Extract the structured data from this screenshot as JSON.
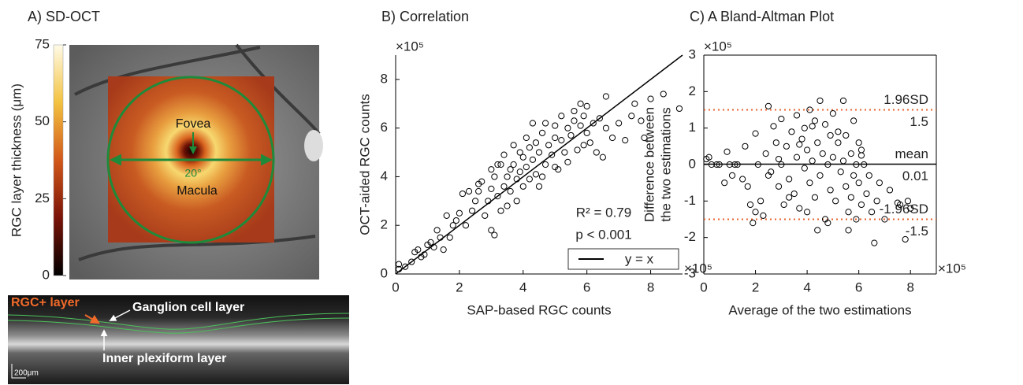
{
  "chart_data": [
    {
      "type": "image",
      "title": "A) SD-OCT",
      "colorbar": {
        "label": "RGC layer thickness (μm)",
        "lim": [
          0,
          75
        ],
        "ticks": [
          0,
          25,
          50,
          75
        ]
      },
      "annotations": [
        "Fovea",
        "20°",
        "Macula",
        "RGC+ layer",
        "Ganglion cell layer",
        "Inner plexiform layer",
        "200μm"
      ]
    },
    {
      "type": "scatter",
      "title": "B) Correlation",
      "xlabel": "SAP-based RGC counts",
      "ylabel": "OCT-aided RGC counts",
      "x_multiplier": "×10⁵",
      "y_multiplier": "×10⁵",
      "xlim": [
        0,
        9
      ],
      "ylim": [
        0,
        9
      ],
      "xticks": [
        0,
        2,
        4,
        6,
        8
      ],
      "yticks": [
        0,
        2,
        4,
        6,
        8
      ],
      "annotations": [
        "R² = 0.79",
        "p < 0.001"
      ],
      "reference_line": {
        "name": "y = x",
        "color": "#000000"
      },
      "x": [
        0.1,
        0.1,
        0.3,
        0.5,
        0.6,
        0.7,
        0.8,
        0.9,
        1.0,
        1.1,
        1.2,
        1.3,
        1.4,
        1.5,
        1.6,
        1.7,
        1.8,
        1.9,
        2.0,
        2.1,
        2.2,
        2.3,
        2.4,
        2.5,
        2.6,
        2.7,
        2.8,
        2.9,
        3.0,
        3.0,
        3.0,
        3.1,
        3.1,
        3.2,
        3.3,
        3.3,
        3.4,
        3.4,
        3.5,
        3.5,
        3.6,
        3.6,
        3.7,
        3.7,
        3.8,
        3.8,
        3.9,
        3.9,
        4.0,
        4.0,
        4.1,
        4.1,
        4.2,
        4.2,
        4.3,
        4.3,
        4.4,
        4.4,
        4.5,
        4.5,
        4.6,
        4.7,
        4.7,
        4.8,
        4.9,
        5.0,
        5.0,
        5.1,
        5.2,
        5.2,
        5.3,
        5.4,
        5.4,
        5.5,
        5.6,
        5.7,
        5.8,
        5.8,
        5.9,
        5.9,
        6.0,
        6.0,
        6.1,
        6.2,
        6.3,
        6.4,
        6.5,
        6.6,
        6.8,
        7.0,
        7.2,
        7.4,
        7.5,
        7.7,
        7.8,
        8.0,
        8.4,
        8.9,
        4.6,
        3.2,
        2.6,
        5.6,
        6.6,
        5.0
      ],
      "series": [
        {
          "color": "#000000",
          "values": [
            0.2,
            0.4,
            0.3,
            0.5,
            0.9,
            1.0,
            0.7,
            0.8,
            1.2,
            1.3,
            1.1,
            1.8,
            1.5,
            1.0,
            2.4,
            1.5,
            2.0,
            2.2,
            2.5,
            3.3,
            2.0,
            3.4,
            2.6,
            3.0,
            3.7,
            3.8,
            2.4,
            3.0,
            1.8,
            3.5,
            4.3,
            1.6,
            4.0,
            3.2,
            4.5,
            2.6,
            3.6,
            4.9,
            4.0,
            2.8,
            4.3,
            3.4,
            5.3,
            4.5,
            3.9,
            3.0,
            5.0,
            4.2,
            4.8,
            3.6,
            5.6,
            4.4,
            3.9,
            5.2,
            4.7,
            6.2,
            4.1,
            5.4,
            5.0,
            3.6,
            5.8,
            4.5,
            6.2,
            5.3,
            4.9,
            5.6,
            6.1,
            4.3,
            5.5,
            6.5,
            5.0,
            6.0,
            4.6,
            5.7,
            6.3,
            5.1,
            6.1,
            7.0,
            5.3,
            6.5,
            5.8,
            6.9,
            5.4,
            6.2,
            5.0,
            6.4,
            4.8,
            6.0,
            5.6,
            6.2,
            5.5,
            6.5,
            7.0,
            6.3,
            5.6,
            7.2,
            7.4,
            6.8,
            4.0,
            4.5,
            3.4,
            6.7,
            7.3,
            4.4
          ]
        }
      ]
    },
    {
      "type": "scatter",
      "title": "C) A Bland-Altman Plot",
      "xlabel": "Average of the two estimations",
      "ylabel": [
        "Difference between",
        "the two estimations"
      ],
      "x_multiplier": "×10⁵",
      "y_multiplier": "×10⁵",
      "box": true,
      "xlim": [
        0,
        9
      ],
      "ylim": [
        -3,
        3
      ],
      "xticks": [
        0,
        2,
        4,
        6,
        8
      ],
      "yticks": [
        -3,
        -2,
        -1,
        0,
        1,
        2,
        3
      ],
      "hlines": [
        {
          "name": "1.96SD",
          "value": 1.5,
          "color": "#e8602c",
          "style": "dotted"
        },
        {
          "name": "mean",
          "value": 0.01,
          "color": "#000000",
          "style": "solid"
        },
        {
          "name": "-1.96SD",
          "value": -1.5,
          "color": "#e8602c",
          "style": "dotted"
        }
      ],
      "x": [
        0.1,
        0.2,
        0.3,
        0.5,
        0.8,
        0.9,
        1.0,
        1.1,
        1.3,
        1.5,
        1.6,
        1.7,
        1.8,
        1.9,
        2.0,
        2.0,
        2.1,
        2.2,
        2.3,
        2.4,
        2.5,
        2.6,
        2.7,
        2.8,
        2.9,
        3.0,
        3.0,
        3.1,
        3.2,
        3.3,
        3.4,
        3.5,
        3.6,
        3.6,
        3.7,
        3.8,
        3.9,
        3.9,
        4.0,
        4.0,
        4.1,
        4.1,
        4.2,
        4.3,
        4.3,
        4.4,
        4.5,
        4.5,
        4.6,
        4.7,
        4.7,
        4.8,
        4.9,
        4.9,
        5.0,
        5.0,
        5.1,
        5.2,
        5.3,
        5.4,
        5.4,
        5.5,
        5.5,
        5.6,
        5.7,
        5.7,
        5.8,
        5.8,
        5.9,
        5.9,
        6.0,
        6.0,
        6.1,
        6.1,
        6.2,
        6.3,
        6.4,
        6.5,
        6.6,
        6.7,
        6.8,
        7.0,
        7.2,
        7.5,
        7.6,
        7.8,
        7.9,
        8.0,
        4.4,
        5.6,
        4.8,
        3.3,
        2.5,
        6.1,
        5.2,
        3.7,
        4.2,
        2.9,
        1.2,
        0.6
      ],
      "series": [
        {
          "color": "#000000",
          "values": [
            0.15,
            0.2,
            0.0,
            0.0,
            -0.5,
            0.35,
            0.0,
            -0.3,
            0.0,
            -0.4,
            0.5,
            -0.6,
            -1.1,
            -1.6,
            0.85,
            -1.3,
            0.0,
            -1.0,
            -1.4,
            0.3,
            1.6,
            -0.2,
            1.05,
            0.6,
            -0.6,
            1.25,
            0.0,
            -1.1,
            0.5,
            -0.4,
            0.9,
            -0.8,
            1.35,
            0.2,
            -1.2,
            0.7,
            -0.1,
            1.0,
            -1.3,
            0.4,
            1.5,
            -0.5,
            0.1,
            1.2,
            -0.9,
            0.6,
            1.75,
            -0.3,
            0.3,
            1.1,
            -1.5,
            0.0,
            0.8,
            -0.7,
            1.4,
            0.2,
            -1.0,
            0.6,
            -0.2,
            1.75,
            0.1,
            -0.6,
            0.8,
            -1.3,
            0.3,
            -0.9,
            1.2,
            -0.3,
            0.0,
            -1.5,
            0.6,
            -0.5,
            0.25,
            -1.1,
            0.0,
            -0.8,
            -0.3,
            -1.3,
            -2.15,
            -1.0,
            -0.5,
            -1.5,
            -0.7,
            -1.05,
            -1.1,
            -2.05,
            -1.0,
            -1.2,
            -1.8,
            -1.8,
            -1.6,
            -0.9,
            -0.3,
            0.4,
            0.9,
            0.55,
            1.05,
            0.15,
            0.0,
            0.0
          ]
        }
      ]
    }
  ]
}
